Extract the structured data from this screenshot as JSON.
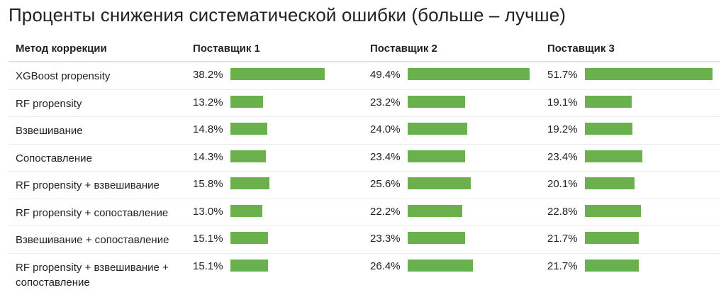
{
  "title": "Проценты снижения систематической ошибки (больше – лучше)",
  "accent_color": "#6ab04c",
  "columns": [
    "Метод коррекции",
    "Поставщик 1",
    "Поставщик 2",
    "Поставщик 3"
  ],
  "chart_data": {
    "type": "table",
    "title": "Проценты снижения систематической ошибки (больше – лучше)",
    "categories": [
      "XGBoost propensity",
      "RF propensity",
      "Взвешивание",
      "Сопоставление",
      "RF propensity + взвешивание",
      "RF propensity + сопоставление",
      "Взвешивание + сопоставление",
      "RF propensity + взвешивание + сопоставление"
    ],
    "series": [
      {
        "name": "Поставщик 1",
        "values": [
          38.2,
          13.2,
          14.8,
          14.3,
          15.8,
          13.0,
          15.1,
          15.1
        ]
      },
      {
        "name": "Поставщик 2",
        "values": [
          49.4,
          23.2,
          24.0,
          23.4,
          25.6,
          22.2,
          23.3,
          26.4
        ]
      },
      {
        "name": "Поставщик 3",
        "values": [
          51.7,
          19.1,
          19.2,
          23.4,
          20.1,
          22.8,
          21.7,
          21.7
        ]
      }
    ],
    "value_labels": [
      [
        "38.2%",
        "49.4%",
        "51.7%"
      ],
      [
        "13.2%",
        "23.2%",
        "19.1%"
      ],
      [
        "14.8%",
        "24.0%",
        "19.2%"
      ],
      [
        "14.3%",
        "23.4%",
        "23.4%"
      ],
      [
        "15.8%",
        "25.6%",
        "20.1%"
      ],
      [
        "13.0%",
        "22.2%",
        "22.8%"
      ],
      [
        "15.1%",
        "23.3%",
        "21.7%"
      ],
      [
        "15.1%",
        "26.4%",
        "21.7%"
      ]
    ]
  }
}
